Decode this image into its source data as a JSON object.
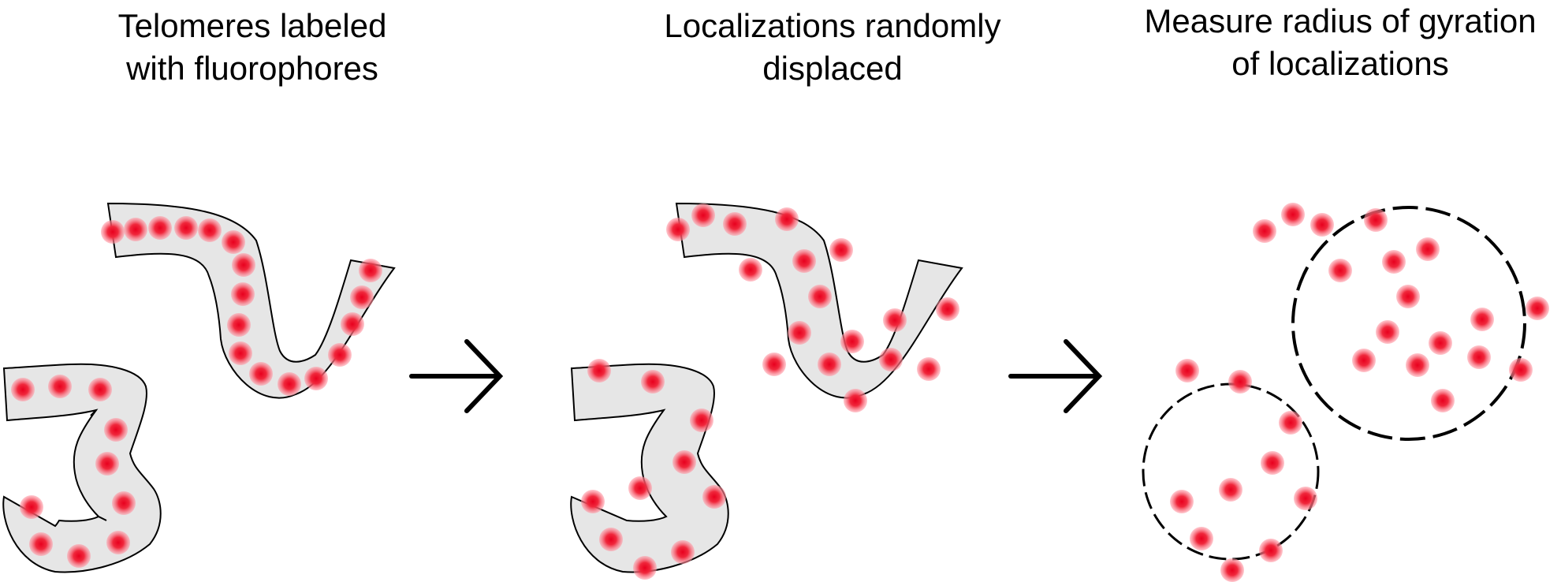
{
  "panels": [
    {
      "title_line1": "Telomeres labeled",
      "title_line2": "with fluorophores"
    },
    {
      "title_line1": "Localizations randomly",
      "title_line2": "displaced"
    },
    {
      "title_line1": "Measure radius of gyration",
      "title_line2": "of localizations"
    }
  ],
  "colors": {
    "chromatin_fill": "#e6e6e6",
    "outline": "#000000",
    "fluorophore_core": "#e8001e",
    "fluorophore_halo": "#ff9aa6",
    "gyration_circle": "#000000"
  },
  "icons": [
    "right-arrow-icon",
    "right-arrow-icon"
  ]
}
